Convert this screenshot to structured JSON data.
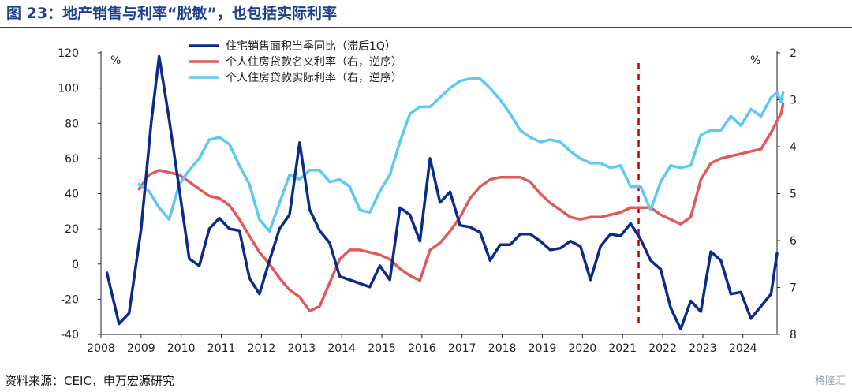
{
  "header": {
    "title": "图 23：地产销售与利率“脱敏”，也包括实际利率"
  },
  "footer": {
    "source": "资料来源：CEIC，申万宏源研究",
    "watermark": "格隆汇"
  },
  "chart_data": {
    "type": "line",
    "left_axis": {
      "unit": "%",
      "ylim": [
        -40,
        120
      ],
      "ticks": [
        -40,
        -20,
        0,
        20,
        40,
        60,
        80,
        100,
        120
      ]
    },
    "right_axis": {
      "unit": "%",
      "ylim": [
        2,
        8
      ],
      "inverted": true,
      "ticks": [
        2,
        3,
        4,
        5,
        6,
        7,
        8
      ]
    },
    "x_axis": {
      "xlim": [
        2008,
        2024.85
      ],
      "ticks": [
        2008,
        2009,
        2010,
        2011,
        2012,
        2013,
        2014,
        2015,
        2016,
        2017,
        2018,
        2019,
        2020,
        2021,
        2022,
        2023,
        2024
      ]
    },
    "marker_line": {
      "x": 2021.4,
      "style": "dashed",
      "color": "#c00000"
    },
    "series": [
      {
        "name": "住宅销售面积当季同比（滞后1Q）",
        "axis": "left",
        "color": "#0a2a8c",
        "points": [
          [
            2008.15,
            -5
          ],
          [
            2008.45,
            -34
          ],
          [
            2008.7,
            -28
          ],
          [
            2009.0,
            20
          ],
          [
            2009.25,
            80
          ],
          [
            2009.45,
            118
          ],
          [
            2009.7,
            82
          ],
          [
            2010.0,
            35
          ],
          [
            2010.2,
            3
          ],
          [
            2010.45,
            -1
          ],
          [
            2010.7,
            20
          ],
          [
            2010.95,
            26
          ],
          [
            2011.2,
            20
          ],
          [
            2011.45,
            19
          ],
          [
            2011.7,
            -8
          ],
          [
            2011.95,
            -17
          ],
          [
            2012.2,
            2
          ],
          [
            2012.45,
            20
          ],
          [
            2012.7,
            28
          ],
          [
            2012.95,
            69
          ],
          [
            2013.2,
            31
          ],
          [
            2013.45,
            19
          ],
          [
            2013.7,
            12
          ],
          [
            2013.95,
            -7
          ],
          [
            2014.2,
            -9
          ],
          [
            2014.45,
            -11
          ],
          [
            2014.7,
            -13
          ],
          [
            2014.95,
            -1
          ],
          [
            2015.2,
            -9
          ],
          [
            2015.45,
            32
          ],
          [
            2015.7,
            28
          ],
          [
            2015.95,
            13
          ],
          [
            2016.2,
            60
          ],
          [
            2016.45,
            35
          ],
          [
            2016.7,
            41
          ],
          [
            2016.95,
            22
          ],
          [
            2017.2,
            21
          ],
          [
            2017.45,
            18
          ],
          [
            2017.7,
            2
          ],
          [
            2017.95,
            11
          ],
          [
            2018.2,
            11
          ],
          [
            2018.45,
            17
          ],
          [
            2018.7,
            17
          ],
          [
            2018.95,
            13
          ],
          [
            2019.2,
            8
          ],
          [
            2019.45,
            9
          ],
          [
            2019.7,
            13
          ],
          [
            2019.95,
            10
          ],
          [
            2020.2,
            -9
          ],
          [
            2020.45,
            10
          ],
          [
            2020.7,
            17
          ],
          [
            2020.95,
            16
          ],
          [
            2021.2,
            23
          ],
          [
            2021.45,
            14
          ],
          [
            2021.7,
            2
          ],
          [
            2021.95,
            -3
          ],
          [
            2022.2,
            -25
          ],
          [
            2022.45,
            -37
          ],
          [
            2022.7,
            -21
          ],
          [
            2022.95,
            -27
          ],
          [
            2023.2,
            7
          ],
          [
            2023.45,
            2
          ],
          [
            2023.7,
            -17
          ],
          [
            2023.95,
            -16
          ],
          [
            2024.2,
            -31
          ],
          [
            2024.45,
            -24
          ],
          [
            2024.7,
            -17
          ],
          [
            2024.85,
            6
          ]
        ]
      },
      {
        "name": "个人住房贷款名义利率（右，逆序）",
        "axis": "right",
        "color": "#e05a5a",
        "points": [
          [
            2008.95,
            4.9
          ],
          [
            2009.2,
            4.6
          ],
          [
            2009.45,
            4.5
          ],
          [
            2009.7,
            4.55
          ],
          [
            2009.95,
            4.6
          ],
          [
            2010.2,
            4.75
          ],
          [
            2010.45,
            4.9
          ],
          [
            2010.7,
            5.05
          ],
          [
            2010.95,
            5.1
          ],
          [
            2011.2,
            5.25
          ],
          [
            2011.45,
            5.55
          ],
          [
            2011.7,
            5.9
          ],
          [
            2011.95,
            6.25
          ],
          [
            2012.2,
            6.5
          ],
          [
            2012.45,
            6.8
          ],
          [
            2012.7,
            7.05
          ],
          [
            2012.95,
            7.2
          ],
          [
            2013.2,
            7.5
          ],
          [
            2013.45,
            7.4
          ],
          [
            2013.7,
            6.9
          ],
          [
            2013.95,
            6.4
          ],
          [
            2014.2,
            6.2
          ],
          [
            2014.45,
            6.2
          ],
          [
            2014.7,
            6.25
          ],
          [
            2014.95,
            6.3
          ],
          [
            2015.2,
            6.4
          ],
          [
            2015.45,
            6.6
          ],
          [
            2015.7,
            6.75
          ],
          [
            2015.95,
            6.85
          ],
          [
            2016.2,
            6.2
          ],
          [
            2016.45,
            6.05
          ],
          [
            2016.7,
            5.8
          ],
          [
            2016.95,
            5.5
          ],
          [
            2017.2,
            5.1
          ],
          [
            2017.45,
            4.85
          ],
          [
            2017.7,
            4.7
          ],
          [
            2017.95,
            4.65
          ],
          [
            2018.2,
            4.65
          ],
          [
            2018.45,
            4.65
          ],
          [
            2018.7,
            4.75
          ],
          [
            2018.95,
            5.0
          ],
          [
            2019.2,
            5.2
          ],
          [
            2019.45,
            5.35
          ],
          [
            2019.7,
            5.5
          ],
          [
            2019.95,
            5.55
          ],
          [
            2020.2,
            5.5
          ],
          [
            2020.45,
            5.5
          ],
          [
            2020.7,
            5.45
          ],
          [
            2020.95,
            5.4
          ],
          [
            2021.2,
            5.3
          ],
          [
            2021.45,
            5.3
          ],
          [
            2021.7,
            5.3
          ],
          [
            2021.95,
            5.45
          ],
          [
            2022.2,
            5.55
          ],
          [
            2022.45,
            5.65
          ],
          [
            2022.7,
            5.5
          ],
          [
            2022.95,
            4.7
          ],
          [
            2023.2,
            4.35
          ],
          [
            2023.45,
            4.25
          ],
          [
            2023.7,
            4.2
          ],
          [
            2023.95,
            4.15
          ],
          [
            2024.2,
            4.1
          ],
          [
            2024.45,
            4.05
          ],
          [
            2024.7,
            3.7
          ],
          [
            2024.85,
            3.45
          ],
          [
            2024.95,
            3.3
          ],
          [
            2025.0,
            3.1
          ]
        ]
      },
      {
        "name": "个人住房贷款实际利率（右，逆序）",
        "axis": "right",
        "color": "#5cc8f5",
        "points": [
          [
            2008.95,
            4.8
          ],
          [
            2009.2,
            4.95
          ],
          [
            2009.45,
            5.3
          ],
          [
            2009.7,
            5.55
          ],
          [
            2009.95,
            4.8
          ],
          [
            2010.2,
            4.5
          ],
          [
            2010.45,
            4.25
          ],
          [
            2010.7,
            3.85
          ],
          [
            2010.95,
            3.8
          ],
          [
            2011.2,
            3.95
          ],
          [
            2011.45,
            4.4
          ],
          [
            2011.7,
            4.8
          ],
          [
            2011.95,
            5.55
          ],
          [
            2012.2,
            5.8
          ],
          [
            2012.45,
            5.2
          ],
          [
            2012.7,
            4.6
          ],
          [
            2012.95,
            4.7
          ],
          [
            2013.2,
            4.5
          ],
          [
            2013.45,
            4.5
          ],
          [
            2013.7,
            4.75
          ],
          [
            2013.95,
            4.7
          ],
          [
            2014.2,
            4.85
          ],
          [
            2014.45,
            5.35
          ],
          [
            2014.7,
            5.4
          ],
          [
            2014.95,
            4.95
          ],
          [
            2015.2,
            4.6
          ],
          [
            2015.45,
            3.9
          ],
          [
            2015.7,
            3.3
          ],
          [
            2015.95,
            3.15
          ],
          [
            2016.2,
            3.15
          ],
          [
            2016.45,
            2.95
          ],
          [
            2016.7,
            2.75
          ],
          [
            2016.95,
            2.6
          ],
          [
            2017.2,
            2.55
          ],
          [
            2017.45,
            2.55
          ],
          [
            2017.7,
            2.75
          ],
          [
            2017.95,
            3.0
          ],
          [
            2018.2,
            3.3
          ],
          [
            2018.45,
            3.65
          ],
          [
            2018.7,
            3.8
          ],
          [
            2018.95,
            3.9
          ],
          [
            2019.2,
            3.85
          ],
          [
            2019.45,
            3.9
          ],
          [
            2019.7,
            4.1
          ],
          [
            2019.95,
            4.25
          ],
          [
            2020.2,
            4.35
          ],
          [
            2020.45,
            4.35
          ],
          [
            2020.7,
            4.45
          ],
          [
            2020.95,
            4.4
          ],
          [
            2021.2,
            4.85
          ],
          [
            2021.45,
            4.85
          ],
          [
            2021.7,
            5.35
          ],
          [
            2021.95,
            4.75
          ],
          [
            2022.2,
            4.4
          ],
          [
            2022.45,
            4.45
          ],
          [
            2022.7,
            4.4
          ],
          [
            2022.95,
            3.75
          ],
          [
            2023.2,
            3.65
          ],
          [
            2023.45,
            3.65
          ],
          [
            2023.7,
            3.35
          ],
          [
            2023.95,
            3.55
          ],
          [
            2024.2,
            3.2
          ],
          [
            2024.45,
            3.35
          ],
          [
            2024.7,
            2.95
          ],
          [
            2024.85,
            2.85
          ],
          [
            2024.95,
            3.05
          ],
          [
            2025.0,
            2.85
          ]
        ]
      }
    ]
  }
}
